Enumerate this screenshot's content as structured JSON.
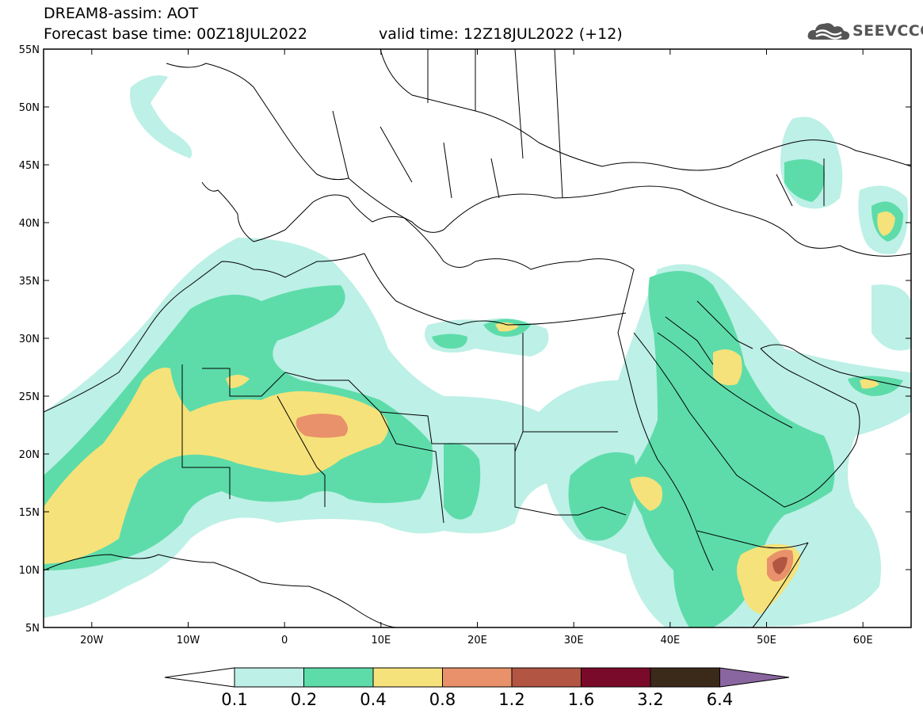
{
  "header": {
    "title_line1": "DREAM8-assim: AOT",
    "forecast_base": "Forecast base time: 00Z18JUL2022",
    "valid_time": "valid time: 12Z18JUL2022 (+12)"
  },
  "logo": {
    "text": "SEEVCCC",
    "icon": "cloud-logo-icon"
  },
  "map": {
    "lon_range": [
      -25,
      65
    ],
    "lat_range": [
      5,
      55
    ],
    "lat_ticks": [
      "55N",
      "50N",
      "45N",
      "40N",
      "35N",
      "30N",
      "25N",
      "20N",
      "15N",
      "10N",
      "5N"
    ],
    "lon_ticks": [
      "20W",
      "10W",
      "0",
      "10E",
      "20E",
      "30E",
      "40E",
      "50E",
      "60E"
    ]
  },
  "colorbar": {
    "labels": [
      "0.1",
      "0.2",
      "0.4",
      "0.8",
      "1.2",
      "1.6",
      "3.2",
      "6.4"
    ],
    "colors": [
      "#ffffff",
      "#bdf0e6",
      "#5ddcaa",
      "#f6e27a",
      "#e9916a",
      "#b25543",
      "#7a0a2a",
      "#3b2a1a",
      "#8a66a0"
    ]
  }
}
